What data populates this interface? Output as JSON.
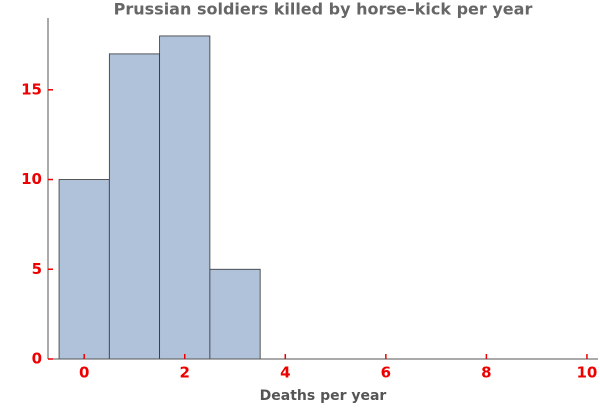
{
  "chart_data": {
    "type": "histogram",
    "title": "Prussian soldiers killed by horse–kick per year",
    "x_label": "Deaths per year",
    "bins": [
      -0.5,
      0.5,
      1.5,
      2.5,
      3.5
    ],
    "values": [
      10,
      17,
      18,
      5
    ],
    "color": "#b0c1da",
    "xlim": [
      -0.72,
      10.22
    ],
    "xticks": [
      0,
      2,
      4,
      6,
      8,
      10
    ],
    "ylim": [
      0,
      19
    ],
    "yticks": [
      0,
      5,
      10,
      15
    ]
  }
}
